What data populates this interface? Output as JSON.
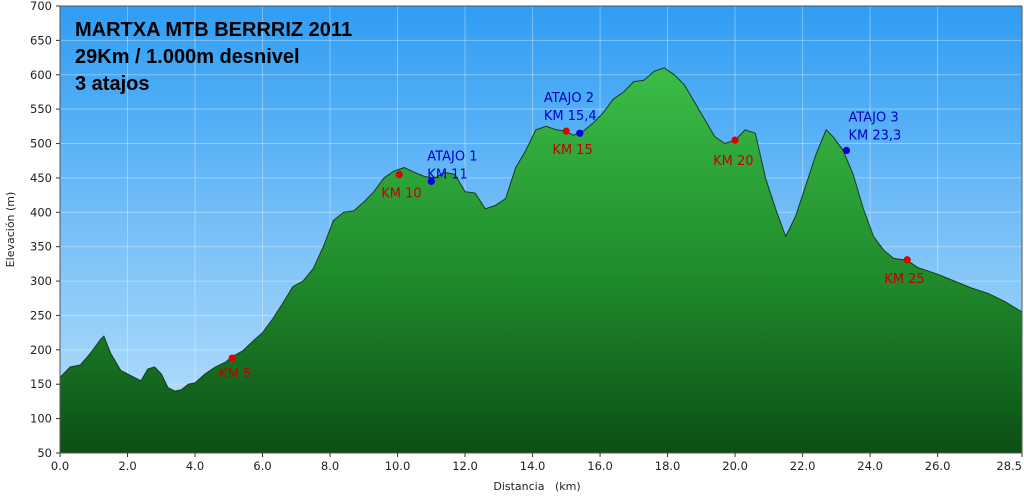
{
  "chart_data": {
    "type": "area",
    "title": [
      "MARTXA MTB BERRRIZ 2011",
      "29Km / 1.000m desnivel",
      "3 atajos"
    ],
    "xlabel": "Distancia   (km)",
    "ylabel": "Elevación (m)",
    "xlim": [
      0,
      28.5
    ],
    "ylim": [
      50,
      700
    ],
    "xticks": [
      "0.0",
      "2.0",
      "4.0",
      "6.0",
      "8.0",
      "10.0",
      "12.0",
      "14.0",
      "16.0",
      "18.0",
      "20.0",
      "22.0",
      "24.0",
      "26.0",
      "28.5"
    ],
    "xtick_values": [
      0,
      2,
      4,
      6,
      8,
      10,
      12,
      14,
      16,
      18,
      20,
      22,
      24,
      26,
      28.5
    ],
    "yticks": [
      "700",
      "650",
      "600",
      "550",
      "500",
      "450",
      "400",
      "350",
      "300",
      "250",
      "200",
      "150",
      "100",
      "50"
    ],
    "ytick_values": [
      700,
      650,
      600,
      550,
      500,
      450,
      400,
      350,
      300,
      250,
      200,
      150,
      100,
      50
    ],
    "grid": true,
    "colors": {
      "sky_top": "#2f9df4",
      "sky_bottom": "#bfe2fb",
      "fill_top": "#2fae3c",
      "fill_bottom": "#0f5a19",
      "outline": "#1b3a1b",
      "red_marker": "#e00000",
      "blue_marker": "#0000dd"
    },
    "x": [
      0,
      0.3,
      0.6,
      0.9,
      1.2,
      1.3,
      1.5,
      1.8,
      2.0,
      2.2,
      2.4,
      2.6,
      2.8,
      3.0,
      3.2,
      3.4,
      3.6,
      3.8,
      4.0,
      4.3,
      4.6,
      4.9,
      5.1,
      5.4,
      5.7,
      6.0,
      6.3,
      6.6,
      6.9,
      7.2,
      7.5,
      7.8,
      8.1,
      8.4,
      8.7,
      9.0,
      9.3,
      9.6,
      9.9,
      10.2,
      10.5,
      10.8,
      11.1,
      11.4,
      11.7,
      12.0,
      12.3,
      12.6,
      12.9,
      13.2,
      13.5,
      13.8,
      14.1,
      14.4,
      14.7,
      15.0,
      15.2,
      15.5,
      15.8,
      16.1,
      16.4,
      16.7,
      17.0,
      17.3,
      17.6,
      17.9,
      18.2,
      18.5,
      18.8,
      19.1,
      19.4,
      19.7,
      20.0,
      20.3,
      20.6,
      20.9,
      21.2,
      21.5,
      21.8,
      22.1,
      22.4,
      22.7,
      22.9,
      23.2,
      23.5,
      23.8,
      24.1,
      24.4,
      24.7,
      25.1,
      25.4,
      25.7,
      26.0,
      26.5,
      27.0,
      27.5,
      28.0,
      28.5
    ],
    "y": [
      160,
      175,
      178,
      195,
      215,
      220,
      195,
      170,
      165,
      160,
      155,
      172,
      175,
      165,
      145,
      140,
      142,
      150,
      152,
      165,
      175,
      182,
      190,
      198,
      212,
      225,
      245,
      268,
      292,
      300,
      318,
      350,
      388,
      400,
      402,
      415,
      430,
      450,
      460,
      465,
      458,
      452,
      450,
      458,
      455,
      430,
      428,
      405,
      410,
      420,
      465,
      490,
      520,
      525,
      520,
      518,
      512,
      518,
      530,
      545,
      565,
      575,
      590,
      592,
      605,
      610,
      600,
      585,
      560,
      535,
      510,
      500,
      505,
      520,
      515,
      450,
      405,
      365,
      395,
      440,
      485,
      520,
      510,
      490,
      455,
      405,
      365,
      345,
      333,
      330,
      320,
      315,
      310,
      300,
      290,
      282,
      270,
      255
    ],
    "points": [
      {
        "x": 5.1,
        "y": 188,
        "color": "red",
        "label": [
          "KM 5"
        ]
      },
      {
        "x": 10.05,
        "y": 455,
        "color": "red",
        "label": [
          "KM 10"
        ]
      },
      {
        "x": 11.0,
        "y": 445,
        "color": "blue",
        "label": [
          "ATAJO 1",
          "KM 11"
        ]
      },
      {
        "x": 15.0,
        "y": 518,
        "color": "red",
        "label": [
          "KM 15"
        ]
      },
      {
        "x": 15.4,
        "y": 515,
        "color": "blue",
        "label": [
          "ATAJO 2",
          "KM 15,4"
        ]
      },
      {
        "x": 20.0,
        "y": 505,
        "color": "red",
        "label": [
          "KM 20"
        ]
      },
      {
        "x": 23.3,
        "y": 490,
        "color": "blue",
        "label": [
          "ATAJO 3",
          "KM 23,3"
        ]
      },
      {
        "x": 25.1,
        "y": 331,
        "color": "red",
        "label": [
          "KM 25"
        ]
      }
    ]
  }
}
